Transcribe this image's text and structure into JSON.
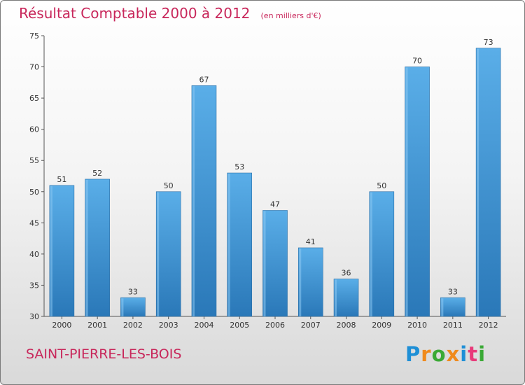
{
  "chart_data": {
    "type": "bar",
    "title": "Résultat Comptable 2000 à 2012",
    "subtitle": "(en milliers d'€)",
    "categories": [
      "2000",
      "2001",
      "2002",
      "2003",
      "2004",
      "2005",
      "2006",
      "2007",
      "2008",
      "2009",
      "2010",
      "2011",
      "2012"
    ],
    "values": [
      51,
      52,
      33,
      50,
      67,
      53,
      47,
      41,
      36,
      50,
      70,
      33,
      73
    ],
    "ylim": [
      30,
      75
    ],
    "yticks": [
      30,
      35,
      40,
      45,
      50,
      55,
      60,
      65,
      70,
      75
    ],
    "xlabel": "",
    "ylabel": "",
    "grid": false,
    "colors": {
      "bar_light": "#5aaee8",
      "bar_dark": "#2a78b8",
      "accent": "#c8265a"
    }
  },
  "footer": {
    "commune": "SAINT-PIERRE-LES-BOIS",
    "logo_letters": [
      {
        "ch": "P",
        "color": "#1e8fd6"
      },
      {
        "ch": "r",
        "color": "#f08a1c"
      },
      {
        "ch": "o",
        "color": "#3aa935"
      },
      {
        "ch": "x",
        "color": "#f08a1c"
      },
      {
        "ch": "i",
        "color": "#1e8fd6"
      },
      {
        "ch": "t",
        "color": "#e83a7a"
      },
      {
        "ch": "i",
        "color": "#3aa935"
      }
    ]
  }
}
